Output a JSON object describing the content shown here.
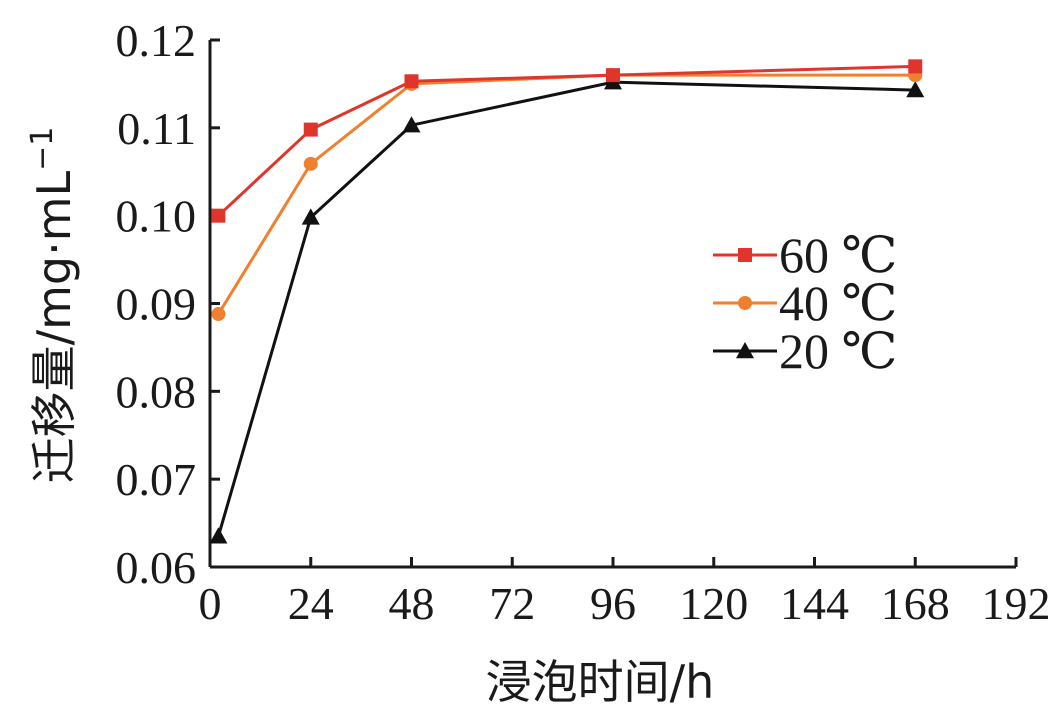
{
  "chart_data": {
    "type": "line",
    "xlabel": "浸泡时间/h",
    "ylabel": "迁移量/mg·mL",
    "ylabel_sup": "−1",
    "xlim": [
      0,
      192
    ],
    "ylim": [
      0.06,
      0.12
    ],
    "x_ticks": [
      0,
      24,
      48,
      72,
      96,
      120,
      144,
      168,
      192
    ],
    "x_tick_labels": [
      "0",
      "24",
      "48",
      "72",
      "96",
      "120",
      "144",
      "168",
      "192"
    ],
    "y_ticks": [
      0.06,
      0.07,
      0.08,
      0.09,
      0.1,
      0.11,
      0.12
    ],
    "y_tick_labels": [
      "0.06",
      "0.07",
      "0.08",
      "0.09",
      "0.10",
      "0.11",
      "0.12"
    ],
    "grid": false,
    "legend_position": "right-center",
    "series": [
      {
        "name": "60 ℃",
        "color": "#e0352b",
        "marker": "square",
        "x": [
          2,
          24,
          48,
          96,
          168
        ],
        "y": [
          0.1,
          0.1098,
          0.1153,
          0.116,
          0.117
        ]
      },
      {
        "name": "40 ℃",
        "color": "#f07f2e",
        "marker": "circle",
        "x": [
          2,
          24,
          48,
          96,
          168
        ],
        "y": [
          0.0888,
          0.1059,
          0.115,
          0.116,
          0.116
        ]
      },
      {
        "name": "20 ℃",
        "color": "#111111",
        "marker": "triangle",
        "x": [
          2,
          24,
          48,
          96,
          168
        ],
        "y": [
          0.0635,
          0.0998,
          0.1103,
          0.1152,
          0.1143
        ]
      }
    ]
  }
}
